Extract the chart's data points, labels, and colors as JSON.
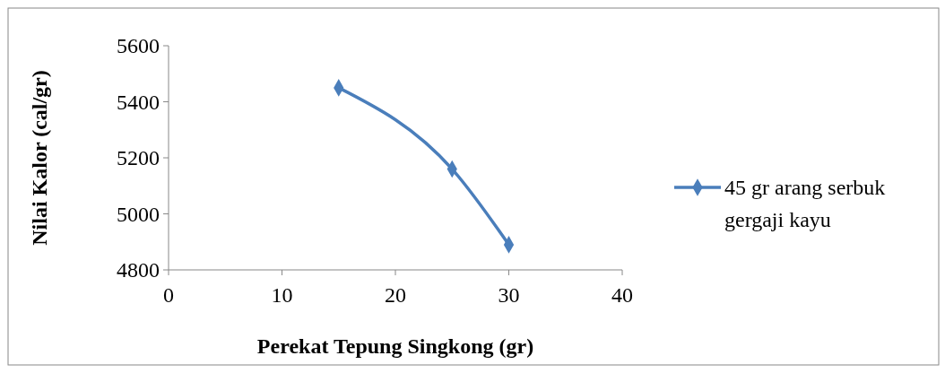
{
  "chart_data": {
    "type": "line",
    "xlabel": "Perekat Tepung Singkong (gr)",
    "ylabel": "Nilai Kalor (cal/gr)",
    "x": [
      15,
      25,
      30
    ],
    "series": [
      {
        "name": "45 gr arang serbuk gergaji kayu",
        "color": "#4a7ebb",
        "values": [
          5450,
          5160,
          4890
        ]
      }
    ],
    "xlim": [
      0,
      40
    ],
    "xticks": [
      0,
      10,
      20,
      30,
      40
    ],
    "ylim": [
      4800,
      5600
    ],
    "yticks": [
      4800,
      5000,
      5200,
      5400,
      5600
    ],
    "grid": false,
    "legend": "right",
    "marker": "diamond",
    "line_style": "solid"
  }
}
